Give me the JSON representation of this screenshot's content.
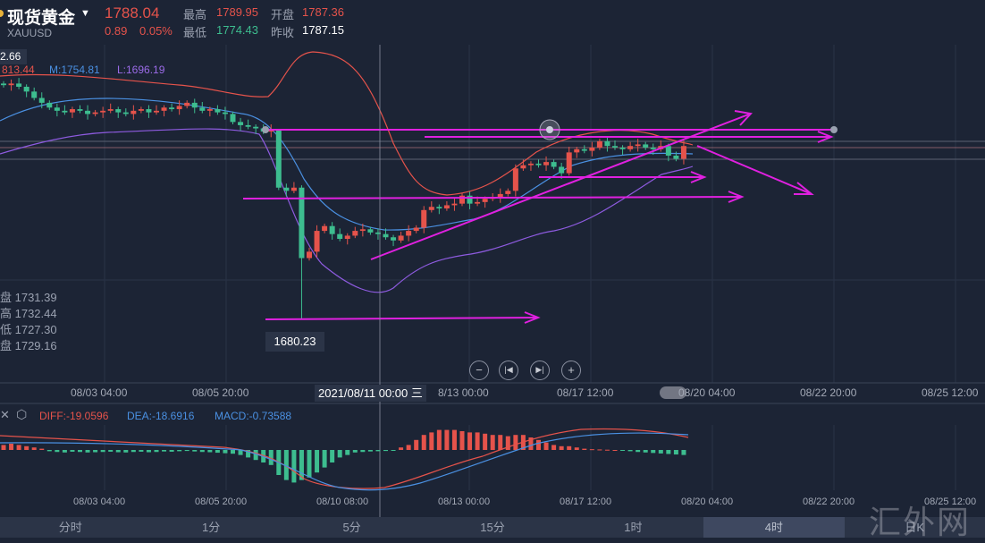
{
  "header": {
    "title": "现货黄金",
    "symbol": "XAUUSD",
    "price": "1788.04",
    "change": "0.89",
    "change_pct": "0.05%",
    "high_label": "最高",
    "high": "1789.95",
    "open_label": "开盘",
    "open": "1787.36",
    "low_label": "最低",
    "low": "1774.43",
    "prev_close_label": "昨收",
    "prev_close": "1787.15"
  },
  "boll": {
    "box": "2.66",
    "upper": "813.44",
    "mid": "M:1754.81",
    "lower": "L:1696.19"
  },
  "ohlc_panel": [
    "盘 1731.39",
    "高 1732.44",
    "低 1727.30",
    "盘 1729.16"
  ],
  "tooltip_low": "1680.23",
  "crosshair_date": "2021/08/11 00:00 三",
  "xaxis_main": [
    "08/03 04:00",
    "08/05 20:00",
    "8/13 00:00",
    "08/17 12:00",
    "08/20 04:00",
    "08/22 20:00",
    "08/25 12:00"
  ],
  "xaxis_macd": [
    "08/03 04:00",
    "08/05 20:00",
    "08/10 08:00",
    "08/13 00:00",
    "08/17 12:00",
    "08/20 04:00",
    "08/22 20:00",
    "08/25 12:00"
  ],
  "macd": {
    "diff": "DIFF:-19.0596",
    "dea": "DEA:-18.6916",
    "macd": "MACD:-0.73588"
  },
  "controls": [
    "zoom-out",
    "prev",
    "next",
    "zoom-in"
  ],
  "tabs": [
    {
      "label": "分时"
    },
    {
      "label": "1分"
    },
    {
      "label": "5分"
    },
    {
      "label": "15分"
    },
    {
      "label": "1时"
    },
    {
      "label": "4时",
      "selected": true
    },
    {
      "label": "日K"
    }
  ],
  "watermark": "汇外网",
  "colors": {
    "up": "#e5534b",
    "down": "#3dbd8f",
    "annotation": "#e020e0",
    "bg": "#1c2435"
  },
  "candles_close": [
    1826,
    1827,
    1825,
    1822,
    1818,
    1815,
    1812,
    1810,
    1809,
    1811,
    1810,
    1808,
    1809,
    1810,
    1811,
    1809,
    1808,
    1810,
    1811,
    1809,
    1810,
    1812,
    1811,
    1813,
    1815,
    1812,
    1810,
    1811,
    1809,
    1808,
    1803,
    1801,
    1800,
    1799,
    1797,
    1798,
    1762,
    1760,
    1762,
    1718,
    1722,
    1735,
    1738,
    1733,
    1730,
    1732,
    1735,
    1736,
    1734,
    1733,
    1731,
    1729,
    1732,
    1735,
    1737,
    1748,
    1750,
    1749,
    1751,
    1752,
    1757,
    1752,
    1753,
    1755,
    1756,
    1758,
    1760,
    1774,
    1776,
    1777,
    1776,
    1778,
    1775,
    1771,
    1784,
    1786,
    1785,
    1787,
    1791,
    1788,
    1787,
    1786,
    1788,
    1789,
    1787,
    1786,
    1788,
    1782,
    1780,
    1788
  ],
  "macd_hist": [
    2,
    2.5,
    2,
    1.5,
    1,
    0.5,
    -0.5,
    -0.8,
    -1,
    -0.7,
    -0.8,
    -1,
    -0.9,
    -0.8,
    -0.7,
    -0.9,
    -1,
    -0.8,
    -0.7,
    -0.9,
    -0.8,
    -0.6,
    -0.7,
    -0.5,
    -0.4,
    -0.6,
    -0.8,
    -0.9,
    -1.1,
    -1.3,
    -1.5,
    -2,
    -3,
    -4,
    -5,
    -6,
    -10,
    -12,
    -13,
    -12,
    -11,
    -9,
    -7,
    -5,
    -3,
    -2,
    -1,
    -0.8,
    -0.6,
    -0.5,
    -0.4,
    -0.2,
    1,
    2,
    4,
    6,
    7,
    8,
    8,
    8,
    7.5,
    7,
    7,
    6.5,
    6,
    6,
    5.5,
    6,
    6,
    5,
    4,
    3,
    2,
    1.5,
    1.5,
    1,
    0.5,
    0.3,
    0.2,
    0.1,
    0,
    -0.3,
    -0.5,
    -0.8,
    -1,
    -1.2,
    -1.4,
    -1.6,
    -1.8,
    -2
  ]
}
